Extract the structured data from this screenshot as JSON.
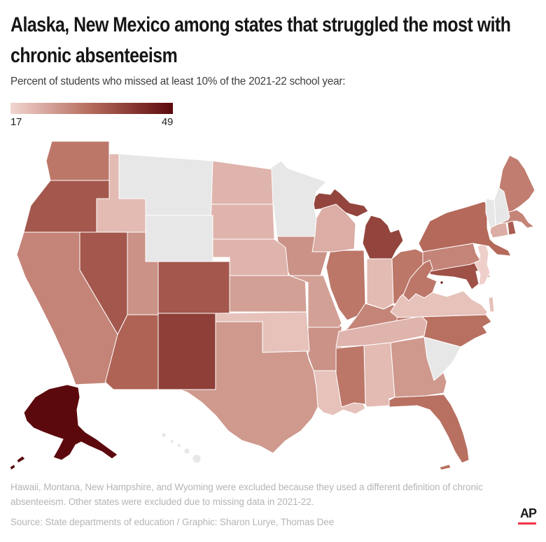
{
  "header": {
    "title_lines": [
      "Alaska, New Mexico among states that struggled the most with",
      "chronic absenteeism"
    ],
    "subtitle": "Percent of students who missed at least 10% of the 2021-22 school year:"
  },
  "legend": {
    "min_label": "17",
    "max_label": "49"
  },
  "footer": {
    "note": "Hawaii, Montana, New Hampshire, and Wyoming were excluded because they used a different definition of chronic absenteeism. Other states were excluded due to missing data in 2021-22.",
    "source": "Source: State departments of education / Graphic: Sharon Lurye, Thomas Dee",
    "ap_logo": "AP"
  },
  "colors": {
    "background": "#ffffff",
    "title": "#161616",
    "subtitle": "#3d3d3d",
    "footnote": "#b5b5b5",
    "excluded": "#e7e7e7",
    "state_border": "#ffffff",
    "ap_red": "#f23345"
  },
  "chart_data": {
    "type": "choropleth",
    "title": "Alaska, New Mexico among states that struggled the most with chronic absenteeism",
    "subtitle": "Percent of students who missed at least 10% of the 2021-22 school year:",
    "colorbar": {
      "min": 17,
      "max": 49,
      "stops": [
        "#f2d6d1",
        "#b4695a",
        "#5c090d"
      ]
    },
    "excluded_states": [
      "Hawaii",
      "Montana",
      "New Hampshire",
      "Wyoming",
      "Minnesota",
      "Vermont",
      "South Carolina"
    ],
    "states": [
      {
        "abbr": "AL",
        "name": "Alabama",
        "value": 21
      },
      {
        "abbr": "AK",
        "name": "Alaska",
        "value": 49
      },
      {
        "abbr": "AZ",
        "name": "Arizona",
        "value": 34
      },
      {
        "abbr": "AR",
        "name": "Arkansas",
        "value": 27
      },
      {
        "abbr": "CA",
        "name": "California",
        "value": 29
      },
      {
        "abbr": "CO",
        "name": "Colorado",
        "value": 36
      },
      {
        "abbr": "CT",
        "name": "Connecticut",
        "value": 23
      },
      {
        "abbr": "DE",
        "name": "Delaware",
        "value": 30
      },
      {
        "abbr": "DC",
        "name": "District of Columbia",
        "value": 48
      },
      {
        "abbr": "FL",
        "name": "Florida",
        "value": 32
      },
      {
        "abbr": "GA",
        "name": "Georgia",
        "value": 26
      },
      {
        "abbr": "HI",
        "name": "Hawaii",
        "value": null
      },
      {
        "abbr": "ID",
        "name": "Idaho",
        "value": 21
      },
      {
        "abbr": "IL",
        "name": "Illinois",
        "value": 31
      },
      {
        "abbr": "IN",
        "name": "Indiana",
        "value": 21
      },
      {
        "abbr": "IA",
        "name": "Iowa",
        "value": 27
      },
      {
        "abbr": "KS",
        "name": "Kansas",
        "value": 25
      },
      {
        "abbr": "KY",
        "name": "Kentucky",
        "value": 29
      },
      {
        "abbr": "LA",
        "name": "Louisiana",
        "value": 20
      },
      {
        "abbr": "ME",
        "name": "Maine",
        "value": 30
      },
      {
        "abbr": "MD",
        "name": "Maryland",
        "value": 37
      },
      {
        "abbr": "MA",
        "name": "Massachusetts",
        "value": 29
      },
      {
        "abbr": "MI",
        "name": "Michigan",
        "value": 39
      },
      {
        "abbr": "MN",
        "name": "Minnesota",
        "value": null
      },
      {
        "abbr": "MS",
        "name": "Mississippi",
        "value": 31
      },
      {
        "abbr": "MO",
        "name": "Missouri",
        "value": 25
      },
      {
        "abbr": "MT",
        "name": "Montana",
        "value": null
      },
      {
        "abbr": "NE",
        "name": "Nebraska",
        "value": 22
      },
      {
        "abbr": "NV",
        "name": "Nevada",
        "value": 36
      },
      {
        "abbr": "NH",
        "name": "New Hampshire",
        "value": null
      },
      {
        "abbr": "NJ",
        "name": "New Jersey",
        "value": 18
      },
      {
        "abbr": "NM",
        "name": "New Mexico",
        "value": 40
      },
      {
        "abbr": "NY",
        "name": "New York",
        "value": 33
      },
      {
        "abbr": "NC",
        "name": "North Carolina",
        "value": 32
      },
      {
        "abbr": "ND",
        "name": "North Dakota",
        "value": 22
      },
      {
        "abbr": "OH",
        "name": "Ohio",
        "value": 31
      },
      {
        "abbr": "OK",
        "name": "Oklahoma",
        "value": 20
      },
      {
        "abbr": "OR",
        "name": "Oregon",
        "value": 36
      },
      {
        "abbr": "PA",
        "name": "Pennsylvania",
        "value": 29
      },
      {
        "abbr": "RI",
        "name": "Rhode Island",
        "value": 35
      },
      {
        "abbr": "SC",
        "name": "South Carolina",
        "value": null
      },
      {
        "abbr": "SD",
        "name": "South Dakota",
        "value": 22
      },
      {
        "abbr": "TN",
        "name": "Tennessee",
        "value": 22
      },
      {
        "abbr": "TX",
        "name": "Texas",
        "value": 26
      },
      {
        "abbr": "UT",
        "name": "Utah",
        "value": 27
      },
      {
        "abbr": "VT",
        "name": "Vermont",
        "value": null
      },
      {
        "abbr": "VA",
        "name": "Virginia",
        "value": 20
      },
      {
        "abbr": "WA",
        "name": "Washington",
        "value": 31
      },
      {
        "abbr": "WV",
        "name": "West Virginia",
        "value": 31
      },
      {
        "abbr": "WI",
        "name": "Wisconsin",
        "value": 23
      },
      {
        "abbr": "WY",
        "name": "Wyoming",
        "value": null
      }
    ]
  }
}
